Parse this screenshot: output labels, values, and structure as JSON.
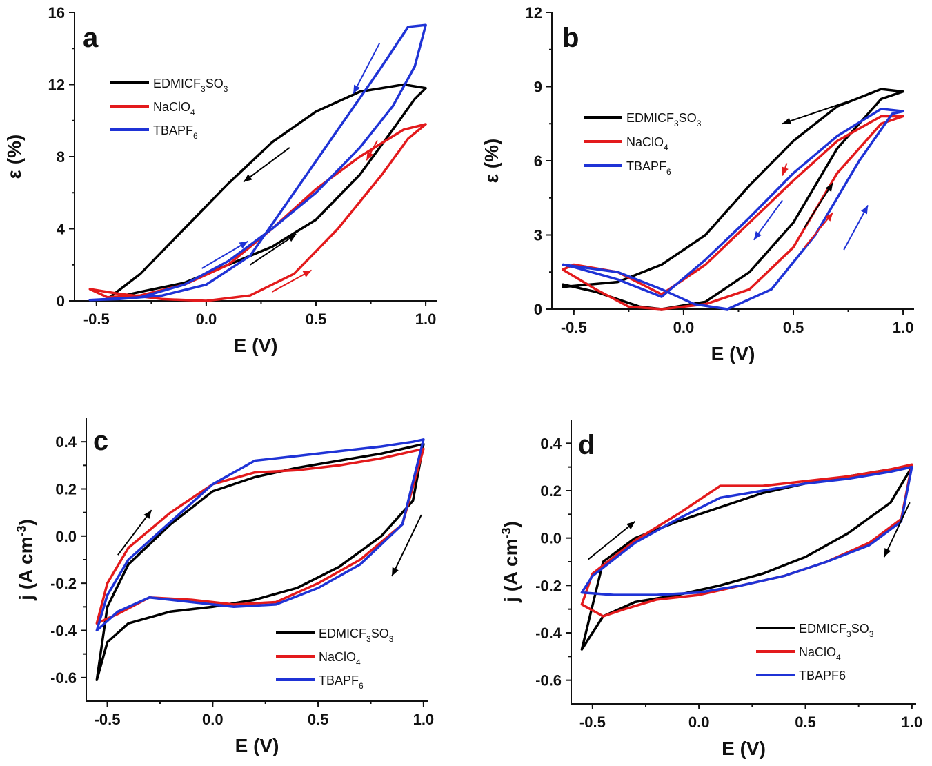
{
  "colors": {
    "EDMICF3SO3": "#000000",
    "NaClO4": "#e31a1c",
    "TBAPF6": "#1f33d6",
    "TBAPF6_plain": "#1f33d6"
  },
  "chart_data": [
    {
      "panel": "a",
      "type": "line",
      "title": "a",
      "xlabel": "E (V)",
      "ylabel": "ε (%)",
      "xlim": [
        -0.6,
        1.05
      ],
      "ylim": [
        0,
        16
      ],
      "xticks": [
        -0.5,
        0.0,
        0.5,
        1.0
      ],
      "xtick_labels": [
        "-0.5",
        "0.0",
        "0.5",
        "1.0"
      ],
      "yticks": [
        0,
        4,
        8,
        12,
        16
      ],
      "ytick_labels": [
        "0",
        "4",
        "8",
        "12",
        "16"
      ],
      "legend_position": "top-left",
      "series": [
        {
          "name": "EDMICF3SO3",
          "key": "EDMICF3SO3",
          "label_base": "EDMICF",
          "sub1": "3",
          "label_mid": "SO",
          "sub2": "3",
          "x": [
            -0.45,
            -0.3,
            -0.1,
            0.1,
            0.3,
            0.5,
            0.7,
            0.85,
            0.95,
            1.0,
            0.9,
            0.7,
            0.5,
            0.3,
            0.1,
            -0.1,
            -0.3,
            -0.45
          ],
          "y": [
            0.1,
            0.5,
            1.0,
            2.0,
            3.0,
            4.5,
            7.0,
            9.5,
            11.2,
            11.8,
            12.0,
            11.6,
            10.5,
            8.8,
            6.5,
            4.0,
            1.5,
            0.1
          ]
        },
        {
          "name": "NaClO4",
          "key": "NaClO4",
          "label_base": "NaClO",
          "sub1": "4",
          "label_mid": "",
          "sub2": "",
          "x": [
            -0.53,
            -0.4,
            -0.2,
            0.0,
            0.2,
            0.4,
            0.6,
            0.8,
            0.92,
            1.0,
            0.9,
            0.7,
            0.5,
            0.3,
            0.1,
            -0.1,
            -0.3,
            -0.45,
            -0.53
          ],
          "y": [
            0.65,
            0.4,
            0.1,
            0.0,
            0.3,
            1.5,
            4.0,
            7.0,
            9.0,
            9.8,
            9.5,
            8.0,
            6.2,
            4.0,
            2.0,
            0.9,
            0.3,
            0.2,
            0.65
          ]
        },
        {
          "name": "TBAPF6",
          "key": "TBAPF6",
          "label_base": "TBAPF",
          "sub1": "6",
          "label_mid": "",
          "sub2": "",
          "x": [
            -0.53,
            -0.3,
            -0.1,
            0.1,
            0.3,
            0.5,
            0.7,
            0.85,
            0.95,
            1.0,
            0.92,
            0.8,
            0.6,
            0.4,
            0.2,
            0.0,
            -0.2,
            -0.4,
            -0.53
          ],
          "y": [
            0.05,
            0.2,
            0.9,
            2.2,
            4.0,
            6.0,
            8.5,
            10.8,
            13.0,
            15.3,
            15.2,
            13.0,
            9.5,
            6.0,
            2.5,
            0.9,
            0.3,
            0.1,
            0.05
          ]
        }
      ],
      "annotations": [
        "direction arrows on loops"
      ]
    },
    {
      "panel": "b",
      "type": "line",
      "title": "b",
      "xlabel": "E (V)",
      "ylabel": "ε (%)",
      "xlim": [
        -0.6,
        1.05
      ],
      "ylim": [
        0,
        12
      ],
      "xticks": [
        -0.5,
        0.0,
        0.5,
        1.0
      ],
      "xtick_labels": [
        "-0.5",
        "0.0",
        "0.5",
        "1.0"
      ],
      "yticks": [
        0,
        3,
        6,
        9,
        12
      ],
      "ytick_labels": [
        "0",
        "3",
        "6",
        "9",
        "12"
      ],
      "legend_position": "top-left",
      "series": [
        {
          "name": "EDMICF3SO3",
          "key": "EDMICF3SO3",
          "label_base": "EDMICF",
          "sub1": "3",
          "label_mid": "SO",
          "sub2": "3",
          "x": [
            -0.55,
            -0.4,
            -0.2,
            -0.1,
            0.1,
            0.3,
            0.5,
            0.7,
            0.9,
            1.0,
            0.9,
            0.7,
            0.5,
            0.3,
            0.1,
            -0.1,
            -0.3,
            -0.55
          ],
          "y": [
            1.0,
            0.7,
            0.1,
            0.0,
            0.3,
            1.5,
            3.5,
            6.5,
            8.5,
            8.8,
            8.9,
            8.2,
            6.8,
            5.0,
            3.0,
            1.8,
            1.1,
            0.9
          ]
        },
        {
          "name": "NaClO4",
          "key": "NaClO4",
          "label_base": "NaClO",
          "sub1": "4",
          "label_mid": "",
          "sub2": "",
          "x": [
            -0.55,
            -0.4,
            -0.25,
            -0.1,
            0.1,
            0.3,
            0.5,
            0.7,
            0.9,
            1.0,
            0.9,
            0.7,
            0.5,
            0.3,
            0.1,
            -0.1,
            -0.3,
            -0.5,
            -0.55
          ],
          "y": [
            1.6,
            0.8,
            0.1,
            0.0,
            0.2,
            0.8,
            2.5,
            5.5,
            7.5,
            7.8,
            7.8,
            6.8,
            5.2,
            3.5,
            1.8,
            0.6,
            1.5,
            1.8,
            1.6
          ]
        },
        {
          "name": "TBAPF6",
          "key": "TBAPF6",
          "label_base": "TBAPF",
          "sub1": "6",
          "label_mid": "",
          "sub2": "",
          "x": [
            -0.55,
            -0.3,
            -0.1,
            0.05,
            0.2,
            0.4,
            0.6,
            0.8,
            0.95,
            1.0,
            0.9,
            0.7,
            0.5,
            0.3,
            0.1,
            -0.1,
            -0.3,
            -0.5,
            -0.55
          ],
          "y": [
            1.8,
            1.5,
            0.8,
            0.2,
            0.0,
            0.8,
            3.0,
            6.0,
            7.9,
            8.0,
            8.1,
            7.0,
            5.5,
            3.7,
            2.0,
            0.5,
            1.2,
            1.7,
            1.8
          ]
        }
      ],
      "annotations": [
        "direction arrows on loops"
      ]
    },
    {
      "panel": "c",
      "type": "line",
      "title": "c",
      "xlabel": "E (V)",
      "ylabel_main": "j (A cm",
      "ylabel_sup": "-3",
      "ylabel_close": ")",
      "xlim": [
        -0.6,
        1.02
      ],
      "ylim": [
        -0.7,
        0.5
      ],
      "xticks": [
        -0.5,
        0.0,
        0.5,
        1.0
      ],
      "xtick_labels": [
        "-0.5",
        "0.0",
        "0.5",
        "1.0"
      ],
      "yticks": [
        -0.6,
        -0.4,
        -0.2,
        0.0,
        0.2,
        0.4
      ],
      "ytick_labels": [
        "-0.6",
        "-0.4",
        "-0.2",
        "0.0",
        "0.2",
        "0.4"
      ],
      "legend_position": "bottom-right",
      "series": [
        {
          "name": "EDMICF3SO3",
          "key": "EDMICF3SO3",
          "label_base": "EDMICF",
          "sub1": "3",
          "label_mid": "SO",
          "sub2": "3",
          "x": [
            -0.55,
            -0.5,
            -0.4,
            -0.2,
            0.0,
            0.2,
            0.4,
            0.6,
            0.8,
            0.95,
            1.0,
            0.95,
            0.8,
            0.6,
            0.4,
            0.2,
            0.0,
            -0.2,
            -0.4,
            -0.5,
            -0.55
          ],
          "y": [
            -0.61,
            -0.45,
            -0.37,
            -0.32,
            -0.3,
            -0.27,
            -0.22,
            -0.13,
            0.0,
            0.15,
            0.39,
            0.38,
            0.35,
            0.32,
            0.29,
            0.25,
            0.19,
            0.05,
            -0.12,
            -0.3,
            -0.61
          ]
        },
        {
          "name": "NaClO4",
          "key": "NaClO4",
          "label_base": "NaClO",
          "sub1": "4",
          "label_mid": "",
          "sub2": "",
          "x": [
            -0.55,
            -0.45,
            -0.3,
            -0.1,
            0.1,
            0.3,
            0.5,
            0.7,
            0.9,
            1.0,
            0.95,
            0.8,
            0.6,
            0.4,
            0.2,
            0.0,
            -0.2,
            -0.4,
            -0.5,
            -0.55
          ],
          "y": [
            -0.37,
            -0.33,
            -0.26,
            -0.27,
            -0.29,
            -0.28,
            -0.2,
            -0.1,
            0.05,
            0.37,
            0.36,
            0.33,
            0.3,
            0.28,
            0.27,
            0.22,
            0.1,
            -0.05,
            -0.2,
            -0.37
          ]
        },
        {
          "name": "TBAPF6",
          "key": "TBAPF6",
          "label_base": "TBAPF",
          "sub1": "6",
          "label_mid": "",
          "sub2": "",
          "x": [
            -0.55,
            -0.45,
            -0.3,
            -0.1,
            0.1,
            0.3,
            0.5,
            0.7,
            0.9,
            1.0,
            0.95,
            0.8,
            0.6,
            0.4,
            0.2,
            0.0,
            -0.2,
            -0.4,
            -0.5,
            -0.55
          ],
          "y": [
            -0.4,
            -0.32,
            -0.26,
            -0.28,
            -0.3,
            -0.29,
            -0.22,
            -0.12,
            0.05,
            0.41,
            0.4,
            0.38,
            0.36,
            0.34,
            0.32,
            0.22,
            0.06,
            -0.1,
            -0.25,
            -0.4
          ]
        }
      ],
      "annotations": [
        "direction arrows on loops"
      ]
    },
    {
      "panel": "d",
      "type": "line",
      "title": "d",
      "xlabel": "E (V)",
      "ylabel_main": "j (A cm",
      "ylabel_sup": "-3",
      "ylabel_close": ")",
      "xlim": [
        -0.6,
        1.02
      ],
      "ylim": [
        -0.7,
        0.5
      ],
      "xticks": [
        -0.5,
        0.0,
        0.5,
        1.0
      ],
      "xtick_labels": [
        "-0.5",
        "0.0",
        "0.5",
        "1.0"
      ],
      "yticks": [
        -0.6,
        -0.4,
        -0.2,
        0.0,
        0.2,
        0.4
      ],
      "ytick_labels": [
        "-0.6",
        "-0.4",
        "-0.2",
        "0.0",
        "0.2",
        "0.4"
      ],
      "legend_position": "bottom-right",
      "series": [
        {
          "name": "EDMICF3SO3",
          "key": "EDMICF3SO3",
          "label_base": "EDMICF",
          "sub1": "3",
          "label_mid": "SO",
          "sub2": "3",
          "x": [
            -0.55,
            -0.45,
            -0.3,
            -0.1,
            0.1,
            0.3,
            0.5,
            0.7,
            0.9,
            1.0,
            0.9,
            0.7,
            0.5,
            0.3,
            0.1,
            -0.1,
            -0.3,
            -0.45,
            -0.55
          ],
          "y": [
            -0.47,
            -0.33,
            -0.27,
            -0.24,
            -0.2,
            -0.15,
            -0.08,
            0.02,
            0.15,
            0.3,
            0.29,
            0.26,
            0.23,
            0.19,
            0.13,
            0.07,
            0.0,
            -0.1,
            -0.47
          ]
        },
        {
          "name": "NaClO4",
          "key": "NaClO4",
          "label_base": "NaClO",
          "sub1": "4",
          "label_mid": "",
          "sub2": "",
          "x": [
            -0.55,
            -0.45,
            -0.35,
            -0.2,
            0.0,
            0.2,
            0.4,
            0.6,
            0.8,
            0.95,
            1.0,
            0.9,
            0.7,
            0.5,
            0.3,
            0.1,
            -0.1,
            -0.3,
            -0.5,
            -0.55
          ],
          "y": [
            -0.28,
            -0.33,
            -0.3,
            -0.26,
            -0.24,
            -0.2,
            -0.16,
            -0.1,
            -0.02,
            0.08,
            0.31,
            0.29,
            0.26,
            0.24,
            0.22,
            0.22,
            0.1,
            -0.01,
            -0.15,
            -0.28
          ]
        },
        {
          "name": "TBAPF6",
          "key": "TBAPF6_plain",
          "label_base": "TBAPF6",
          "sub1": "",
          "label_mid": "",
          "sub2": "",
          "x": [
            -0.55,
            -0.4,
            -0.2,
            0.0,
            0.2,
            0.4,
            0.6,
            0.8,
            0.95,
            1.0,
            0.9,
            0.7,
            0.5,
            0.3,
            0.1,
            -0.1,
            -0.3,
            -0.5,
            -0.55
          ],
          "y": [
            -0.23,
            -0.24,
            -0.24,
            -0.23,
            -0.2,
            -0.16,
            -0.1,
            -0.03,
            0.07,
            0.3,
            0.28,
            0.25,
            0.23,
            0.2,
            0.17,
            0.08,
            -0.02,
            -0.16,
            -0.23
          ]
        }
      ],
      "annotations": [
        "direction arrows on loops"
      ]
    }
  ]
}
